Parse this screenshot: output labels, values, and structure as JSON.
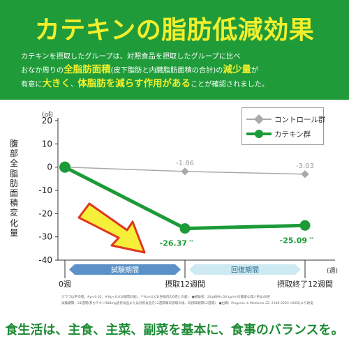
{
  "header": {
    "title": "カテキンの脂肪低減効果",
    "line1": "カテキンを摂取したグループは、対照食品を摂取したグループに比べ",
    "line2_a": "おなか周りの",
    "line2_b": "全脂肪面積",
    "line2_c": "(皮下脂肪と内臓脂肪面積の合計)",
    "line2_d": "の",
    "line2_e": "減少量",
    "line2_f": "が",
    "line3_a": "有意に",
    "line3_b": "大きく",
    "line3_c": "、",
    "line3_d": "体脂肪を減らす作用がある",
    "line3_e": "ことが確認されました。"
  },
  "chart_data": {
    "type": "line",
    "ylabel": "腹部全脂肪面積変化量",
    "y_unit": "(㎠)",
    "x_unit": "(週)",
    "ylim": [
      -40,
      20
    ],
    "yticks": [
      "20",
      "10",
      "0",
      "-10",
      "-20",
      "-30",
      "-40"
    ],
    "categories": [
      "0週",
      "摂取12週間",
      "摂取終了12週間"
    ],
    "series": [
      {
        "name": "コントロール群",
        "values": [
          0,
          -1.86,
          -3.03
        ],
        "labels": [
          "",
          "-1.86",
          "-3.03"
        ],
        "color": "#a9a9a9"
      },
      {
        "name": "カテキン群",
        "values": [
          0,
          -26.37,
          -25.09
        ],
        "labels": [
          "",
          "-26.37",
          "-25.09"
        ],
        "sig": [
          "",
          "**",
          "**"
        ],
        "color": "#1c9a38"
      }
    ],
    "periods": [
      {
        "label": "試験期間",
        "color": "#5b90c8"
      },
      {
        "label": "回復期間",
        "color": "#cde9f2"
      }
    ],
    "legend_position": "top-right"
  },
  "notes": {
    "note1": "グラフは平均値。#p<0.05、##p<0.01(群間の差)、**#p<0.01(各群内の0週との差)　●被験者：24≦BMI<30 kg/m²の健康な成人男女40名",
    "note2": "試験期間：24週間(茶カテキン588mg含有食品または対照食品を12週間毎日摂取の後、非摂取期間12週間)　●出典：Progress in Medicine 22, 2189-2203 (2002)より改変"
  },
  "footer": {
    "text": "食生活は、主食、主菜、副菜を基本に、食事のバランスを。"
  },
  "colors": {
    "header_green": "#1f9b3a",
    "title_yellow": "#f1ef2c",
    "series_green": "#1c9a38",
    "series_gray": "#a9a9a9",
    "arrow_yellow": "#f5ef3a",
    "arrow_red": "#e0361f"
  }
}
